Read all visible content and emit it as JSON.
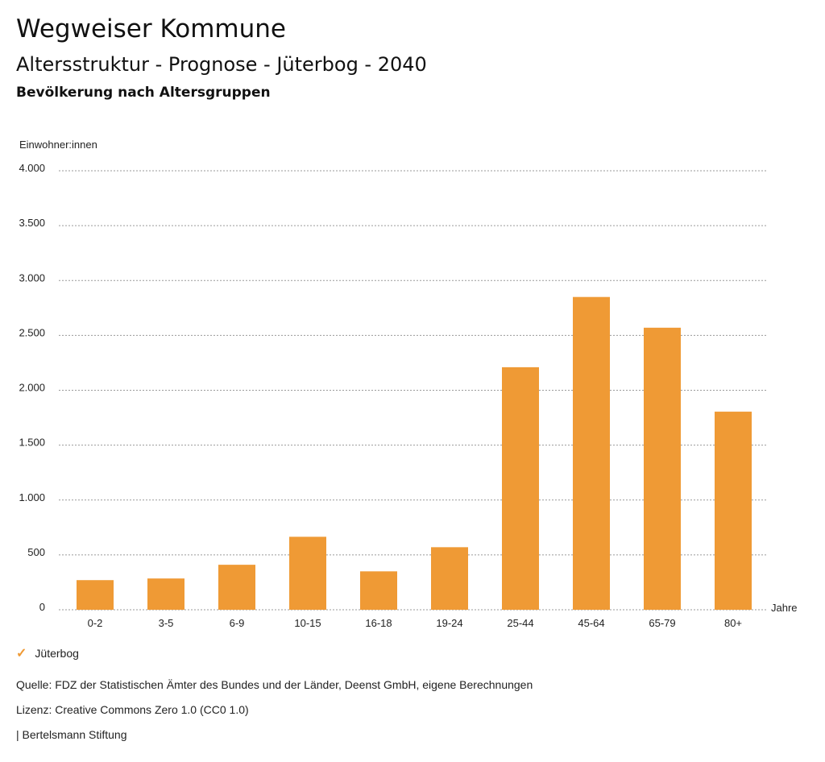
{
  "header": {
    "title": "Wegweiser Kommune",
    "subtitle": "Altersstruktur - Prognose - Jüterbog - 2040",
    "subsubtitle": "Bevölkerung nach Altersgruppen"
  },
  "legend": {
    "items": [
      {
        "label": "Jüterbog",
        "color": "#ef9a35",
        "icon": "checkmark-icon"
      }
    ]
  },
  "footer": {
    "source": "Quelle: FDZ der Statistischen Ämter des Bundes und der Länder, Deenst GmbH, eigene Berechnungen",
    "license": "Lizenz: Creative Commons Zero 1.0 (CC0 1.0)",
    "publisher": "| Bertelsmann Stiftung"
  },
  "chart_data": {
    "type": "bar",
    "title": "Bevölkerung nach Altersgruppen",
    "ylabel": "Einwohner:innen",
    "xlabel": "Jahre",
    "ylim": [
      0,
      4000
    ],
    "yticks": [
      0,
      500,
      1000,
      1500,
      2000,
      2500,
      3000,
      3500,
      4000
    ],
    "ytick_labels": [
      "0",
      "500",
      "1.000",
      "1.500",
      "2.000",
      "2.500",
      "3.000",
      "3.500",
      "4.000"
    ],
    "grid": true,
    "categories": [
      "0-2",
      "3-5",
      "6-9",
      "10-15",
      "16-18",
      "19-24",
      "25-44",
      "45-64",
      "65-79",
      "80+"
    ],
    "series": [
      {
        "name": "Jüterbog",
        "color": "#ef9a35",
        "values": [
          270,
          285,
          410,
          665,
          350,
          570,
          2210,
          2850,
          2570,
          1805
        ]
      }
    ]
  }
}
